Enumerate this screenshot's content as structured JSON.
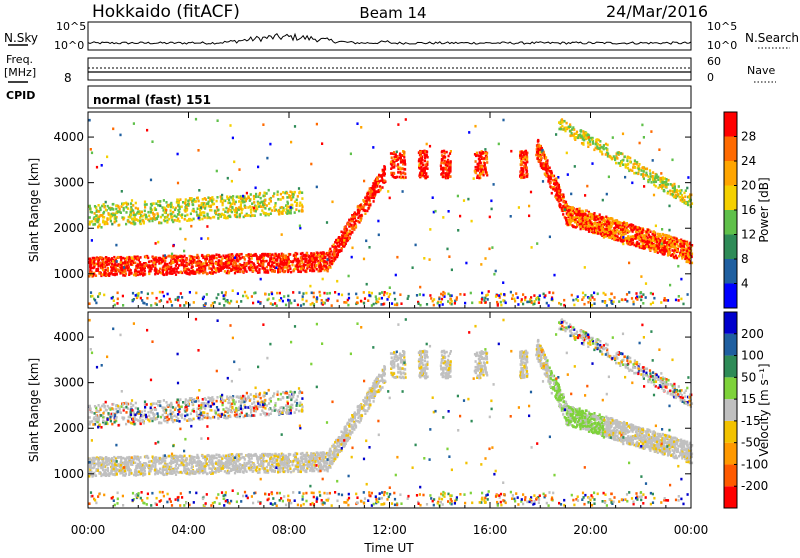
{
  "header": {
    "title": "Hokkaido (fitACF)",
    "beam": "Beam 14",
    "date": "24/Mar/2016"
  },
  "top_panels": {
    "nsky_label": "N.Sky",
    "nsky_ticks": [
      "10^5",
      "10^0"
    ],
    "nsearch_label": "N.Search",
    "freq_label_1": "Freq.",
    "freq_label_2": "[MHz]",
    "freq_ticks": [
      "8"
    ],
    "nave_ticks": [
      "60",
      "0"
    ],
    "nave_label": "Nave",
    "cpid_label": "CPID",
    "cpid_value": "normal (fast) 151"
  },
  "chart_data": [
    {
      "type": "heatmap",
      "panel": "power",
      "ylabel": "Slant Range [km]",
      "yticks": [
        1000,
        2000,
        3000,
        4000
      ],
      "ylim": [
        250,
        4550
      ],
      "xlim": [
        0,
        24
      ],
      "colorbar_label": "Power [dB]",
      "colorbar_ticks": [
        "4",
        "8",
        "12",
        "16",
        "20",
        "24",
        "28"
      ],
      "colors": [
        "#0000ff",
        "#1f5fa0",
        "#2e8b57",
        "#5fc04a",
        "#f4d000",
        "#ffa500",
        "#ff6a00",
        "#ff0000"
      ]
    },
    {
      "type": "heatmap",
      "panel": "velocity",
      "ylabel": "Slant Range [km]",
      "yticks": [
        1000,
        2000,
        3000,
        4000
      ],
      "ylim": [
        250,
        4550
      ],
      "xlim": [
        0,
        24
      ],
      "colorbar_label": "Velocity [m s⁻¹]",
      "colorbar_ticks": [
        "-200",
        "-100",
        "-50",
        "-15",
        "15",
        "50",
        "100",
        "200"
      ],
      "colors": [
        "#ff0000",
        "#ff5a00",
        "#ff9900",
        "#f2c200",
        "#c0c0c0",
        "#7ed23a",
        "#2e8b57",
        "#1f5fa0",
        "#0000cc"
      ]
    }
  ],
  "x_axis": {
    "ticks": [
      "00:00",
      "04:00",
      "08:00",
      "12:00",
      "16:00",
      "20:00",
      "00:00"
    ],
    "label": "Time UT"
  }
}
